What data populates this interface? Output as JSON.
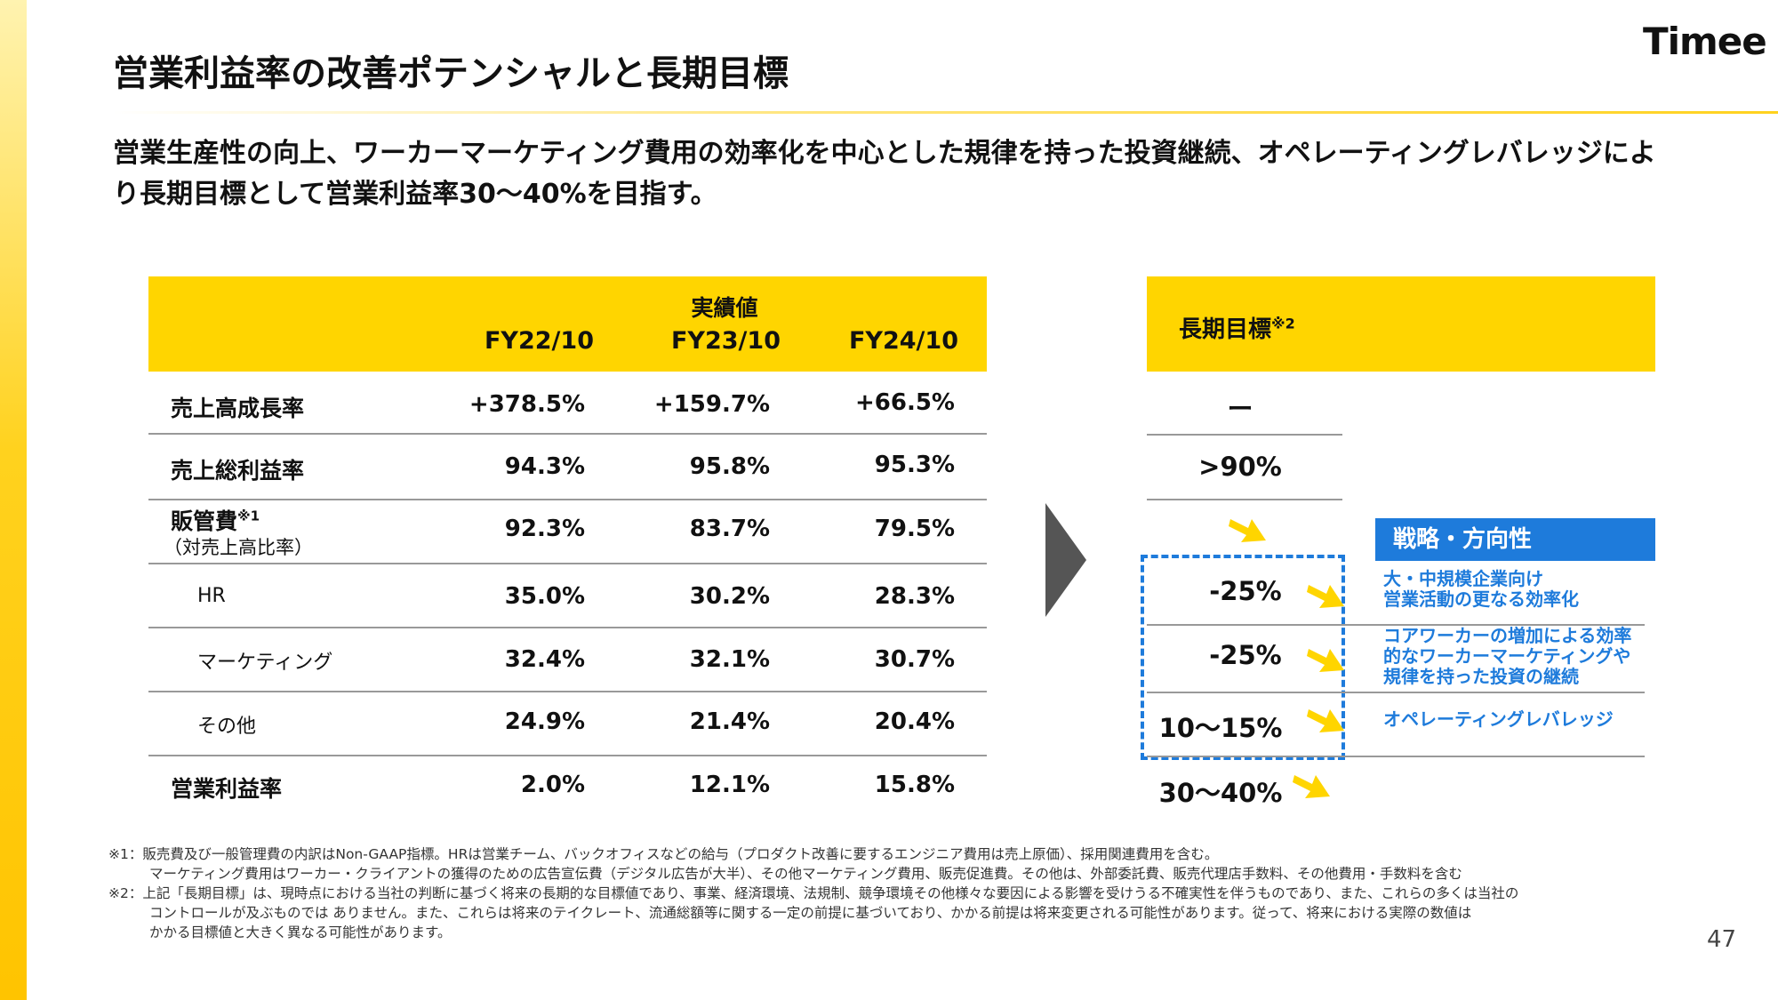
{
  "brand": {
    "logo": "Timee",
    "accent_yellow": "#FFD500",
    "accent_blue": "#1E7BDB"
  },
  "title": "営業利益率の改善ポテンシャルと長期目標",
  "lead": "営業生産性の向上、ワーカーマーケティング費用の効率化を中心とした規律を持った投資継続、オペレーティングレバレッジにより長期目標として営業利益率30〜40%を目指す。",
  "table": {
    "group_header": "実績値",
    "years": [
      "FY22/10",
      "FY23/10",
      "FY24/10"
    ],
    "rows": [
      {
        "label": "売上高成長率",
        "sup": "",
        "sub": "",
        "values": [
          "+378.5%",
          "+159.7%",
          "+66.5%"
        ]
      },
      {
        "label": "売上総利益率",
        "sup": "",
        "sub": "",
        "values": [
          "94.3%",
          "95.8%",
          "95.3%"
        ]
      },
      {
        "label": "販管費",
        "sup": "※1",
        "sub": "（対売上高比率）",
        "values": [
          "92.3%",
          "83.7%",
          "79.5%"
        ]
      },
      {
        "label": "HR",
        "sup": "",
        "sub": "",
        "values": [
          "35.0%",
          "30.2%",
          "28.3%"
        ]
      },
      {
        "label": "マーケティング",
        "sup": "",
        "sub": "",
        "values": [
          "32.4%",
          "32.1%",
          "30.7%"
        ]
      },
      {
        "label": "その他",
        "sup": "",
        "sub": "",
        "values": [
          "24.9%",
          "21.4%",
          "20.4%"
        ]
      },
      {
        "label": "営業利益率",
        "sup": "",
        "sub": "",
        "values": [
          "2.0%",
          "12.1%",
          "15.8%"
        ]
      }
    ]
  },
  "targets": {
    "header": "長期目標",
    "header_sup": "※2",
    "values": [
      "ー",
      ">90%",
      "",
      "-25%",
      "-25%",
      "10〜15%",
      "30〜40%"
    ]
  },
  "strategy": {
    "header": "戦略・方向性",
    "items": [
      [
        "大・中規模企業向け",
        "営業活動の更なる効率化"
      ],
      [
        "コアワーカーの増加による効率",
        "的なワーカーマーケティングや",
        "規律を持った投資の継続"
      ],
      [
        "オペレーティングレバレッジ"
      ]
    ]
  },
  "footnotes": [
    "※1：販売費及び一般管理費の内訳はNon-GAAP指標。HRは営業チーム、バックオフィスなどの給与（プロダクト改善に要するエンジニア費用は売上原価）、採用関連費用を含む。",
    "マーケティング費用はワーカー・クライアントの獲得のための広告宣伝費（デジタル広告が大半）、その他マーケティング費用、販売促進費。その他は、外部委託費、販売代理店手数料、その他費用・手数料を含む",
    "※2：上記「長期目標」は、現時点における当社の判断に基づく将来の長期的な目標値であり、事業、経済環境、法規制、競争環境その他様々な要因による影響を受けうる不確実性を伴うものであり、また、これらの多くは当社の",
    "コントロールが及ぶものでは ありません。また、これらは将来のテイクレート、流通総額等に関する一定の前提に基づいており、かかる前提は将来変更される可能性があります。従って、将来における実際の数値は",
    "かかる目標値と大きく異なる可能性があります。"
  ],
  "page_number": "47"
}
